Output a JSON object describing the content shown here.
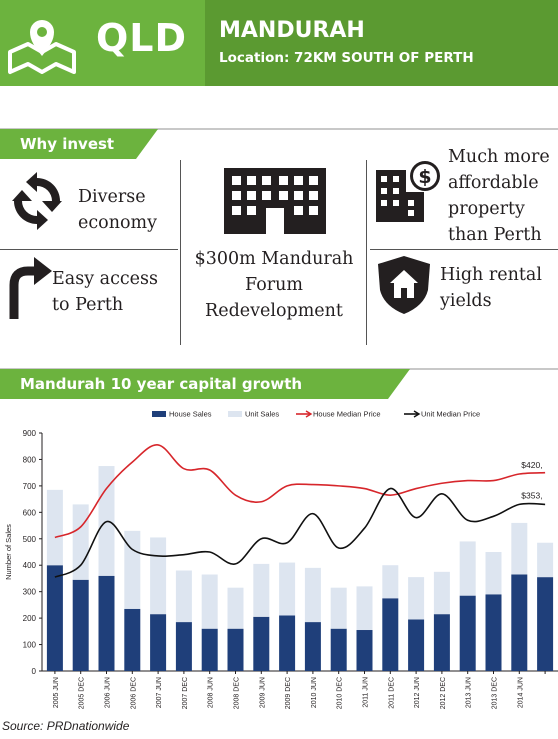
{
  "header": {
    "state": "QLD",
    "title": "MANDURAH",
    "location": "Location: 72KM SOUTH OF PERTH"
  },
  "why_invest": {
    "heading": "Why invest",
    "items": [
      {
        "label": "Diverse economy",
        "icon": "recycle-arrows-icon"
      },
      {
        "label": "Easy access to Perth",
        "icon": "turn-arrow-icon"
      },
      {
        "label": "$300m Mandurah Forum Redevelopment",
        "icon": "building-icon"
      },
      {
        "label": "Much more affordable property than Perth",
        "icon": "building-dollar-icon"
      },
      {
        "label": "High rental yields",
        "icon": "house-shield-icon"
      }
    ]
  },
  "growth_section": {
    "heading": "Mandurah 10 year capital growth"
  },
  "chart_data": {
    "type": "bar",
    "title": "",
    "ylabel": "Number of Sales",
    "xlabel": "",
    "ylim": [
      0,
      900
    ],
    "yticks": [
      0,
      100,
      200,
      300,
      400,
      500,
      600,
      700,
      800,
      900
    ],
    "grid": false,
    "stacked": true,
    "legend_position": "top",
    "categories": [
      "2005 JUN",
      "2005 DEC",
      "2006 JUN",
      "2006 DEC",
      "2007 JUN",
      "2007 DEC",
      "2008 JUN",
      "2008 DEC",
      "2009 JUN",
      "2009 DEC",
      "2010 JUN",
      "2010 DEC",
      "2011 JUN",
      "2011 DEC",
      "2012 JUN",
      "2012 DEC",
      "2013 JUN",
      "2013 DEC",
      "2014 JUN",
      ""
    ],
    "series": [
      {
        "name": "House Sales",
        "kind": "bar",
        "color": "#1f3f7a",
        "values": [
          400,
          345,
          360,
          235,
          215,
          185,
          160,
          160,
          205,
          210,
          185,
          160,
          155,
          275,
          195,
          215,
          285,
          290,
          365,
          355
        ]
      },
      {
        "name": "Unit Sales",
        "kind": "bar",
        "color": "#dde5f0",
        "values": [
          285,
          285,
          415,
          295,
          290,
          195,
          205,
          155,
          200,
          200,
          205,
          155,
          165,
          125,
          160,
          160,
          205,
          160,
          195,
          130
        ]
      },
      {
        "name": "House Median Price",
        "kind": "line",
        "color": "#d7262b",
        "end_label": "$420,",
        "values": [
          505,
          545,
          690,
          790,
          855,
          765,
          760,
          665,
          640,
          700,
          705,
          700,
          690,
          665,
          690,
          710,
          720,
          720,
          745,
          750
        ]
      },
      {
        "name": "Unit Median Price",
        "kind": "line",
        "color": "#111111",
        "end_label": "$353,",
        "values": [
          355,
          400,
          565,
          460,
          435,
          440,
          450,
          405,
          500,
          485,
          595,
          465,
          540,
          690,
          580,
          670,
          570,
          585,
          630,
          630
        ]
      }
    ]
  },
  "source": "Source: PRDnationwide"
}
